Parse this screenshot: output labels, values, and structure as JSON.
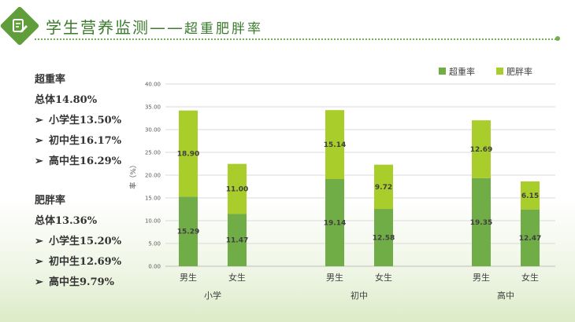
{
  "header": {
    "title_main": "学生营养监测",
    "title_dash": "——",
    "title_sub": "超重肥胖率",
    "logo_icon": "edit-note-icon",
    "accent_color": "#5f9e3a"
  },
  "summary": {
    "overweight": {
      "heading": "超重率",
      "overall": "总体14.80%",
      "items": [
        "小学生13.50%",
        "初中生16.17%",
        "高中生16.29%"
      ]
    },
    "obesity": {
      "heading": "肥胖率",
      "overall": "总体13.36%",
      "items": [
        "小学生15.20%",
        "初中生12.69%",
        "高中生9.79%"
      ]
    },
    "bullet_glyph": "➢"
  },
  "chart_data": {
    "type": "bar",
    "stacked": true,
    "ylabel": "率（%）",
    "ylim": [
      0,
      40
    ],
    "yticks": [
      "0.00",
      "5.00",
      "10.00",
      "15.00",
      "20.00",
      "25.00",
      "30.00",
      "35.00",
      "40.00"
    ],
    "grid": true,
    "legend_position": "top-right",
    "groups": [
      "小学",
      "初中",
      "高中"
    ],
    "categories": [
      "男生",
      "女生",
      "男生",
      "女生",
      "男生",
      "女生"
    ],
    "series": [
      {
        "name": "超重率",
        "color": "#70ad47",
        "values": [
          15.29,
          11.47,
          19.14,
          12.58,
          19.35,
          12.47
        ],
        "labels": [
          "15.29",
          "11.47",
          "19.14",
          "12.58",
          "19.35",
          "12.47"
        ]
      },
      {
        "name": "肥胖率",
        "color": "#a9cd2a",
        "values": [
          18.9,
          11.0,
          15.14,
          9.72,
          12.69,
          6.15
        ],
        "labels": [
          "18.90",
          "11.00",
          "15.14",
          "9.72",
          "12.69",
          "6.15"
        ]
      }
    ]
  }
}
